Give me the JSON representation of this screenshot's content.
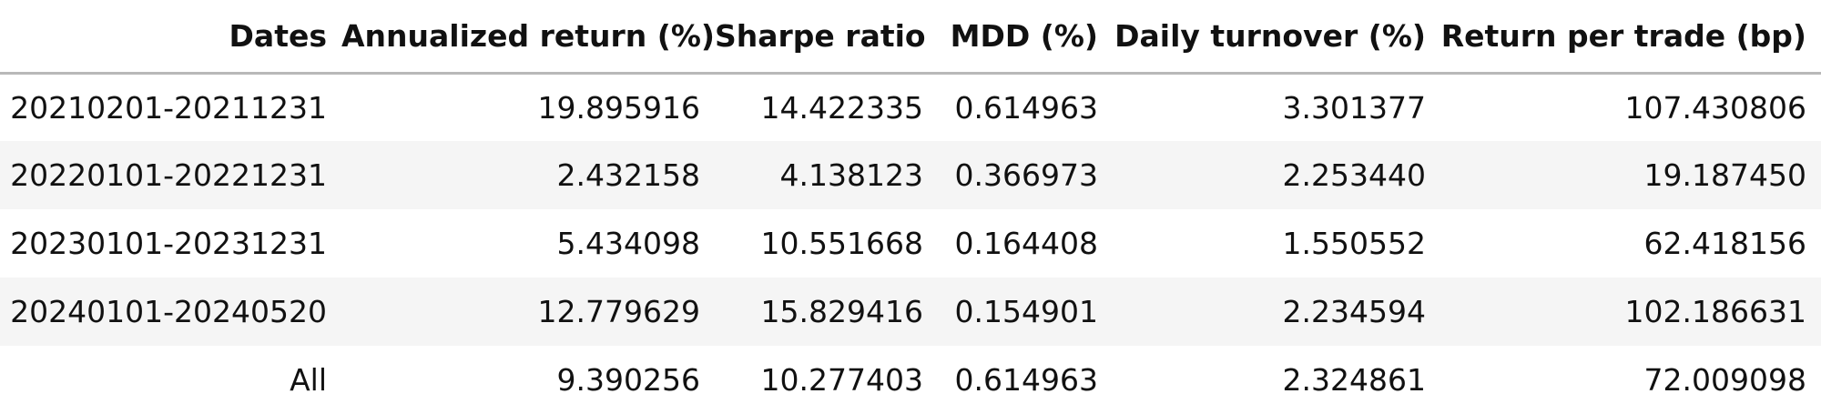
{
  "table": {
    "headers": [
      "Dates",
      "Annualized return (%)",
      "Sharpe ratio",
      "MDD (%)",
      "Daily turnover (%)",
      "Return per trade (bp)"
    ],
    "rows": [
      [
        "20210201-20211231",
        "19.895916",
        "14.422335",
        "0.614963",
        "3.301377",
        "107.430806"
      ],
      [
        "20220101-20221231",
        "2.432158",
        "4.138123",
        "0.366973",
        "2.253440",
        "19.187450"
      ],
      [
        "20230101-20231231",
        "5.434098",
        "10.551668",
        "0.164408",
        "1.550552",
        "62.418156"
      ],
      [
        "20240101-20240520",
        "12.779629",
        "15.829416",
        "0.154901",
        "2.234594",
        "102.186631"
      ],
      [
        "All",
        "9.390256",
        "10.277403",
        "0.614963",
        "2.324861",
        "72.009098"
      ]
    ]
  }
}
